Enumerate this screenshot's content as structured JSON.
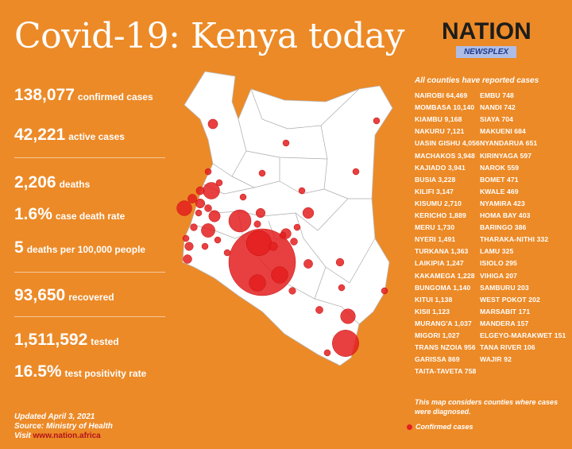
{
  "title": "Covid-19: Kenya today",
  "logo": {
    "main": "NATION",
    "sub": "NEWSPLEX"
  },
  "stats": [
    {
      "value": "138,077",
      "label": "confirmed cases"
    },
    {
      "value": "42,221",
      "label": "active cases"
    },
    {
      "value": "2,206",
      "label": "deaths"
    },
    {
      "value": "1.6%",
      "label": "case death rate"
    },
    {
      "value": "5",
      "label": "deaths per 100,000 people"
    },
    {
      "value": "93,650",
      "label": "recovered"
    },
    {
      "value": "1,511,592",
      "label": "tested"
    },
    {
      "value": "16.5%",
      "label": "test positivity rate"
    }
  ],
  "footer": {
    "updated": "Updated April 3, 2021",
    "source": "Source: Ministry of Health",
    "visit": "Visit",
    "url": "www.nation.africa"
  },
  "counties_heading": "All counties have reported cases",
  "note": "This map considers counties where cases were diagnosed.",
  "legend_label": "Confirmed cases",
  "colors": {
    "background": "#ec8a27",
    "bubble": "#e41f1f",
    "map_fill": "#ffffff",
    "link": "#b3131b"
  },
  "chart_data": {
    "type": "table",
    "title": "All counties have reported cases",
    "columns": [
      "County",
      "Confirmed cases"
    ],
    "rows": [
      [
        "NAIROBI",
        "64,469"
      ],
      [
        "MOMBASA",
        "10,140"
      ],
      [
        "KIAMBU",
        "9,168"
      ],
      [
        "NAKURU",
        "7,121"
      ],
      [
        "UASIN GISHU",
        "4,056"
      ],
      [
        "MACHAKOS",
        "3,948"
      ],
      [
        "KAJIADO",
        "3,941"
      ],
      [
        "BUSIA",
        "3,228"
      ],
      [
        "KILIFI",
        "3,147"
      ],
      [
        "KISUMU",
        "2,710"
      ],
      [
        "KERICHO",
        "1,889"
      ],
      [
        "MERU",
        "1,730"
      ],
      [
        "NYERI",
        "1,491"
      ],
      [
        "TURKANA",
        "1,363"
      ],
      [
        "LAIKIPIA",
        "1,247"
      ],
      [
        "KAKAMEGA",
        "1,228"
      ],
      [
        "BUNGOMA",
        "1,140"
      ],
      [
        "KITUI",
        "1,138"
      ],
      [
        "KISII",
        "1,123"
      ],
      [
        "MURANG'A",
        "1,037"
      ],
      [
        "MIGORI",
        "1,027"
      ],
      [
        "TRANS NZOIA",
        "956"
      ],
      [
        "GARISSA",
        "869"
      ],
      [
        "TAITA-TAVETA",
        "758"
      ],
      [
        "EMBU",
        "748"
      ],
      [
        "NANDI",
        "742"
      ],
      [
        "SIAYA",
        "704"
      ],
      [
        "MAKUENI",
        "684"
      ],
      [
        "NYANDARUA",
        "651"
      ],
      [
        "KIRINYAGA",
        "597"
      ],
      [
        "NAROK",
        "559"
      ],
      [
        "BOMET",
        "471"
      ],
      [
        "KWALE",
        "469"
      ],
      [
        "NYAMIRA",
        "423"
      ],
      [
        "HOMA BAY",
        "403"
      ],
      [
        "BARINGO",
        "386"
      ],
      [
        "THARAKA-NITHI",
        "332"
      ],
      [
        "LAMU",
        "325"
      ],
      [
        "ISIOLO",
        "295"
      ],
      [
        "VIHIGA",
        "207"
      ],
      [
        "SAMBURU",
        "203"
      ],
      [
        "WEST POKOT",
        "202"
      ],
      [
        "MARSABIT",
        "171"
      ],
      [
        "MANDERA",
        "157"
      ],
      [
        "ELGEYO-MARAKWET",
        "151"
      ],
      [
        "TANA RIVER",
        "106"
      ],
      [
        "WAJIR",
        "92"
      ]
    ],
    "bubbles": [
      {
        "county": "NAIROBI",
        "value": 64469
      },
      {
        "county": "MOMBASA",
        "value": 10140
      },
      {
        "county": "KIAMBU",
        "value": 9168
      },
      {
        "county": "NAKURU",
        "value": 7121
      },
      {
        "county": "UASIN GISHU",
        "value": 4056
      },
      {
        "county": "MACHAKOS",
        "value": 3948
      },
      {
        "county": "KAJIADO",
        "value": 3941
      },
      {
        "county": "BUSIA",
        "value": 3228
      },
      {
        "county": "KILIFI",
        "value": 3147
      },
      {
        "county": "KISUMU",
        "value": 2710
      },
      {
        "county": "KERICHO",
        "value": 1889
      },
      {
        "county": "MERU",
        "value": 1730
      },
      {
        "county": "NYERI",
        "value": 1491
      },
      {
        "county": "TURKANA",
        "value": 1363
      },
      {
        "county": "LAIKIPIA",
        "value": 1247
      },
      {
        "county": "KAKAMEGA",
        "value": 1228
      },
      {
        "county": "BUNGOMA",
        "value": 1140
      },
      {
        "county": "KITUI",
        "value": 1138
      },
      {
        "county": "KISII",
        "value": 1123
      },
      {
        "county": "MURANG'A",
        "value": 1037
      },
      {
        "county": "MIGORI",
        "value": 1027
      },
      {
        "county": "TRANS NZOIA",
        "value": 956
      },
      {
        "county": "GARISSA",
        "value": 869
      },
      {
        "county": "TAITA-TAVETA",
        "value": 758
      },
      {
        "county": "EMBU",
        "value": 748
      },
      {
        "county": "NANDI",
        "value": 742
      },
      {
        "county": "SIAYA",
        "value": 704
      },
      {
        "county": "MAKUENI",
        "value": 684
      },
      {
        "county": "NYANDARUA",
        "value": 651
      },
      {
        "county": "KIRINYAGA",
        "value": 597
      },
      {
        "county": "NAROK",
        "value": 559
      },
      {
        "county": "BOMET",
        "value": 471
      },
      {
        "county": "KWALE",
        "value": 469
      },
      {
        "county": "NYAMIRA",
        "value": 423
      },
      {
        "county": "HOMA BAY",
        "value": 403
      },
      {
        "county": "BARINGO",
        "value": 386
      },
      {
        "county": "THARAKA-NITHI",
        "value": 332
      },
      {
        "county": "LAMU",
        "value": 325
      },
      {
        "county": "ISIOLO",
        "value": 295
      },
      {
        "county": "VIHIGA",
        "value": 207
      },
      {
        "county": "SAMBURU",
        "value": 203
      },
      {
        "county": "WEST POKOT",
        "value": 202
      },
      {
        "county": "MARSABIT",
        "value": 171
      },
      {
        "county": "MANDERA",
        "value": 157
      },
      {
        "county": "ELGEYO-MARAKWET",
        "value": 151
      },
      {
        "county": "TANA RIVER",
        "value": 106
      },
      {
        "county": "WAJIR",
        "value": 92
      }
    ]
  }
}
